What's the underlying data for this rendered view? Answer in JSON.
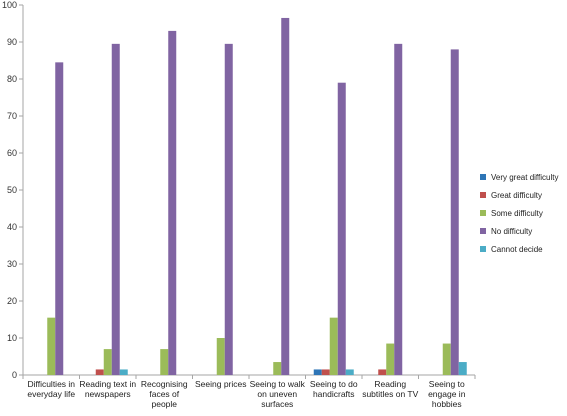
{
  "chart_data": {
    "type": "bar",
    "title": "",
    "xlabel": "",
    "ylabel": "",
    "ylim": [
      0,
      100
    ],
    "y_ticks": [
      0,
      10,
      20,
      30,
      40,
      50,
      60,
      70,
      80,
      90,
      100
    ],
    "grid": false,
    "legend_position": "right",
    "categories": [
      [
        "Difficulties in",
        "everyday life"
      ],
      [
        "Reading text in",
        "newspapers"
      ],
      [
        "Recognising",
        "faces of",
        "people"
      ],
      [
        "Seeing prices"
      ],
      [
        "Seeing to walk",
        "on uneven",
        "surfaces"
      ],
      [
        "Seeing to do",
        "handicrafts"
      ],
      [
        "Reading",
        "subtitles on TV"
      ],
      [
        "Seeing to",
        "engage in",
        "hobbies"
      ]
    ],
    "series": [
      {
        "name": "Very great difficulty",
        "color": "#2e75b6",
        "values": [
          0,
          0,
          0,
          0,
          0,
          1.5,
          0,
          0
        ]
      },
      {
        "name": "Great difficulty",
        "color": "#c0504d",
        "values": [
          0,
          1.5,
          0,
          0,
          0,
          1.5,
          1.5,
          0
        ]
      },
      {
        "name": "Some difficulty",
        "color": "#9bbb59",
        "values": [
          15.5,
          7,
          7,
          10,
          3.5,
          15.5,
          8.5,
          8.5
        ]
      },
      {
        "name": "No difficulty",
        "color": "#8064a2",
        "values": [
          84.5,
          89.5,
          93,
          89.5,
          96.5,
          79,
          89.5,
          88
        ]
      },
      {
        "name": "Cannot decide",
        "color": "#4bacc6",
        "values": [
          0,
          1.5,
          0,
          0,
          0,
          1.5,
          0,
          3.5
        ]
      }
    ]
  }
}
